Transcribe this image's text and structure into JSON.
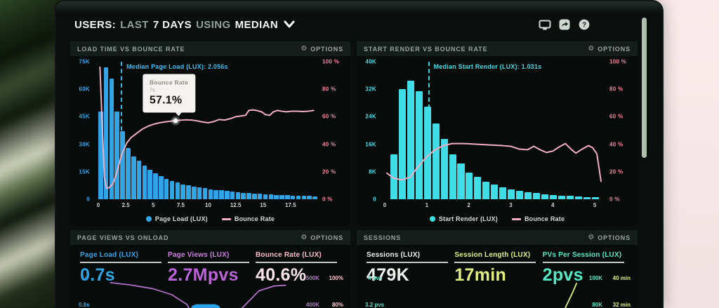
{
  "header": {
    "seg_users": "USERS:",
    "seg_last": "LAST",
    "seg_days": "7 DAYS",
    "seg_using": "USING",
    "seg_median": "MEDIAN"
  },
  "colors": {
    "page_load_blue": "#2fa5e8",
    "start_render_cyan": "#3fdde8",
    "bounce_pink_line": "#f0aec0",
    "bounce_pink_text": "#f2849e",
    "page_views_purple": "#bb62d8",
    "session_yellow": "#e0ef7e",
    "pvs_teal": "#52e8c4",
    "panel_bg": "#070c0a",
    "panel_head_bg": "#151d1a"
  },
  "panels": {
    "load_time": {
      "options_label": "OPTIONS",
      "tooltip": {
        "title": "Bounce Rate",
        "sub": "7s",
        "value": "57.1%"
      }
    },
    "start_render": {
      "options_label": "OPTIONS"
    },
    "page_views": {
      "title": "PAGE VIEWS VS ONLOAD",
      "options_label": "OPTIONS",
      "metrics": [
        {
          "label": "Page Load (LUX)",
          "value": "0.7s",
          "color": "#2fa5e8"
        },
        {
          "label": "Page Views (LUX)",
          "value": "2.7Mpvs",
          "color": "#bb62d8",
          "label_color": "#cb82dc"
        },
        {
          "label": "Bounce Rate (LUX)",
          "value": "40.6%",
          "color": "#fde4ea",
          "label_color": "#f9bcca"
        }
      ],
      "spark_left_labels": [
        "1s",
        "0.8s"
      ],
      "spark_right_col1": [
        "500K",
        "400K"
      ],
      "spark_right_col2": [
        "100%",
        "80%"
      ]
    },
    "sessions": {
      "title": "SESSIONS",
      "options_label": "OPTIONS",
      "metrics": [
        {
          "label": "Sessions (LUX)",
          "value": "479K",
          "color": "#eef2ee",
          "label_color": "#eef2ee"
        },
        {
          "label": "Session Length (LUX)",
          "value": "17min",
          "color": "#e0ef7e",
          "label_color": "#e0ef7e"
        },
        {
          "label": "PVs Per Session (LUX)",
          "value": "2pvs",
          "color": "#52e8c4",
          "label_color": "#52e8c4"
        }
      ],
      "spark_left_labels": [
        "4 pvs",
        "3.2 pvs"
      ],
      "spark_right_col1": [
        "100K",
        "80K"
      ],
      "spark_right_col2": [
        "40 min",
        "32 min"
      ]
    }
  },
  "chart_data": [
    {
      "type": "bar",
      "name": "load-time-vs-bounce-rate",
      "title": "LOAD TIME VS BOUNCE RATE",
      "y_left": {
        "max": 75,
        "unit": "K",
        "ticks": [
          "75K",
          "60K",
          "45K",
          "30K",
          "15K",
          "0"
        ],
        "color": "#2fa5e8"
      },
      "y_right": {
        "max": 100,
        "ticks": [
          "100 %",
          "80 %",
          "60 %",
          "40 %",
          "20 %",
          "0 %"
        ]
      },
      "x": {
        "max": 20,
        "ticks": [
          {
            "label": "0",
            "v": 0
          },
          {
            "label": "2.5",
            "v": 2.5
          },
          {
            "label": "5",
            "v": 5
          },
          {
            "label": "7.5",
            "v": 7.5
          },
          {
            "label": "10",
            "v": 10
          },
          {
            "label": "12.5",
            "v": 12.5
          },
          {
            "label": "15",
            "v": 15
          },
          {
            "label": "17.5",
            "v": 17.5
          }
        ]
      },
      "median": {
        "v": 2.056,
        "label": "Median Page Load (LUX): 2.056s",
        "line_height_pct": 50,
        "color": "#38bdf2"
      },
      "bars": {
        "name": "Page Load (LUX)",
        "color": "#2fa5e8",
        "start": 0,
        "step": 0.5,
        "values_k": [
          48,
          72,
          66,
          48,
          37,
          28,
          23.5,
          21,
          18.5,
          16,
          14,
          12.5,
          11,
          10,
          9,
          8.2,
          7.5,
          7,
          6.5,
          6,
          5.5,
          5.1,
          4.8,
          4.5,
          4.2,
          3.9,
          3.6,
          3.4,
          3.2,
          3.0,
          2.8,
          2.6,
          2.4,
          2.3,
          2.2,
          2.1,
          2.0,
          1.9,
          1.8,
          1.7
        ]
      },
      "line": {
        "name": "Bounce Rate",
        "color": "#f0aec0",
        "points": [
          [
            0.15,
            96
          ],
          [
            0.35,
            55
          ],
          [
            0.55,
            16
          ],
          [
            0.75,
            8
          ],
          [
            1.0,
            8.5
          ],
          [
            1.3,
            11
          ],
          [
            1.6,
            17
          ],
          [
            1.9,
            26
          ],
          [
            2.2,
            34
          ],
          [
            2.6,
            41
          ],
          [
            3.0,
            45
          ],
          [
            3.5,
            48
          ],
          [
            4.0,
            51
          ],
          [
            4.5,
            53
          ],
          [
            5.0,
            54.5
          ],
          [
            5.5,
            55.5
          ],
          [
            6.0,
            56.2
          ],
          [
            6.5,
            56.7
          ],
          [
            7.0,
            57.1
          ],
          [
            7.5,
            57.5
          ],
          [
            8.0,
            57.8
          ],
          [
            8.5,
            57.6
          ],
          [
            9.0,
            57
          ],
          [
            9.5,
            56.2
          ],
          [
            10.0,
            55.6
          ],
          [
            10.5,
            56.5
          ],
          [
            11.0,
            58
          ],
          [
            11.5,
            57.6
          ],
          [
            12.0,
            58.6
          ],
          [
            12.5,
            60
          ],
          [
            13.0,
            60.6
          ],
          [
            13.4,
            61
          ],
          [
            13.7,
            64.6
          ],
          [
            14.1,
            65
          ],
          [
            14.5,
            64.4
          ],
          [
            14.9,
            63.4
          ],
          [
            15.2,
            61.6
          ],
          [
            15.6,
            61
          ],
          [
            15.9,
            63.4
          ],
          [
            16.3,
            64.6
          ],
          [
            16.7,
            64
          ],
          [
            17.1,
            63.6
          ],
          [
            17.6,
            64
          ],
          [
            18.1,
            64
          ],
          [
            18.6,
            63.8
          ],
          [
            19.1,
            64
          ],
          [
            19.6,
            64.6
          ]
        ]
      },
      "tooltip": {
        "x": 7,
        "pct": 57.1
      }
    },
    {
      "type": "bar",
      "name": "start-render-vs-bounce-rate",
      "title": "START RENDER VS BOUNCE RATE",
      "y_left": {
        "max": 40,
        "unit": "K",
        "ticks": [
          "40K",
          "32K",
          "24K",
          "16K",
          "8K",
          "0"
        ],
        "color": "#3fdde8"
      },
      "y_right": {
        "max": 100,
        "ticks": [
          "100 %",
          "80 %",
          "60 %",
          "40 %",
          "20 %",
          "0 %"
        ]
      },
      "x": {
        "max": 5.25,
        "ticks": [
          {
            "label": "0",
            "v": 0
          },
          {
            "label": "1",
            "v": 1
          },
          {
            "label": "2",
            "v": 2
          },
          {
            "label": "3",
            "v": 3
          },
          {
            "label": "4",
            "v": 4
          },
          {
            "label": "5",
            "v": 5
          }
        ]
      },
      "median": {
        "v": 1.031,
        "label": "Median Start Render (LUX): 1.031s",
        "line_height_pct": 34,
        "color": "#3fdde8"
      },
      "bars": {
        "name": "Start Render (LUX)",
        "color": "#3fdde8",
        "start": 0.13,
        "step": 0.2,
        "values_k": [
          13,
          32,
          34.5,
          31.5,
          27,
          22,
          17.5,
          13,
          10.5,
          7.8,
          6.5,
          5.2,
          4.2,
          3.4,
          2.8,
          2.4,
          2.0,
          1.8,
          1.5,
          1.3,
          1.1,
          1.0,
          0.9,
          0.7,
          0.6
        ]
      },
      "line": {
        "name": "Bounce Rate",
        "color": "#f0aec0",
        "points": [
          [
            0.05,
            19
          ],
          [
            0.2,
            15.5
          ],
          [
            0.4,
            14
          ],
          [
            0.6,
            16
          ],
          [
            0.8,
            24
          ],
          [
            1.0,
            31
          ],
          [
            1.2,
            36
          ],
          [
            1.4,
            39
          ],
          [
            1.6,
            40.5
          ],
          [
            1.9,
            40.5
          ],
          [
            2.2,
            40
          ],
          [
            2.5,
            39.5
          ],
          [
            2.8,
            39
          ],
          [
            3.0,
            38.5
          ],
          [
            3.2,
            36.5
          ],
          [
            3.4,
            36
          ],
          [
            3.55,
            38.5
          ],
          [
            3.7,
            36
          ],
          [
            3.85,
            34
          ],
          [
            4.0,
            35
          ],
          [
            4.15,
            38
          ],
          [
            4.3,
            40.5
          ],
          [
            4.45,
            36
          ],
          [
            4.55,
            33.5
          ],
          [
            4.7,
            36.5
          ],
          [
            4.85,
            39
          ],
          [
            4.95,
            37.5
          ],
          [
            5.05,
            33
          ],
          [
            5.15,
            13
          ]
        ]
      }
    },
    {
      "type": "line",
      "name": "page-views-vs-onload-spark",
      "title": "PAGE VIEWS VS ONLOAD",
      "clipped": true,
      "axis_hints": {
        "left": [
          "1s",
          "0.8s"
        ],
        "right": [
          "500K/400K",
          "100%/80%"
        ]
      },
      "series": [
        {
          "name": "Page Load (LUX)",
          "color": "#b06fc8",
          "kind": "line",
          "points_pct": [
            [
              2,
              28
            ],
            [
              12,
              34
            ],
            [
              24,
              44
            ],
            [
              34,
              60
            ],
            [
              42,
              86
            ],
            [
              46,
              118
            ],
            [
              64,
              132
            ],
            [
              72,
              92
            ],
            [
              80,
              50
            ],
            [
              88,
              37
            ],
            [
              94,
              35
            ]
          ]
        },
        {
          "name": "Page Views (LUX)",
          "color": "#2aa4e8",
          "kind": "area",
          "points_pct": [
            [
              44,
              99
            ],
            [
              45,
              90
            ],
            [
              47,
              86
            ],
            [
              57,
              86
            ],
            [
              59,
              90
            ],
            [
              60,
              99
            ]
          ]
        }
      ]
    },
    {
      "type": "line",
      "name": "sessions-spark",
      "title": "SESSIONS",
      "clipped": true,
      "axis_hints": {
        "left": [
          "4 pvs",
          "3.2 pvs"
        ],
        "right": [
          "100K/80K",
          "40 min/32 min"
        ]
      },
      "series": [
        {
          "name": "Session Length (LUX)",
          "color": "#e0ef7e",
          "kind": "line",
          "points_pct": [
            [
              88,
              120
            ],
            [
              91,
              86
            ],
            [
              94,
              54
            ],
            [
              96,
              30
            ]
          ]
        }
      ]
    }
  ]
}
